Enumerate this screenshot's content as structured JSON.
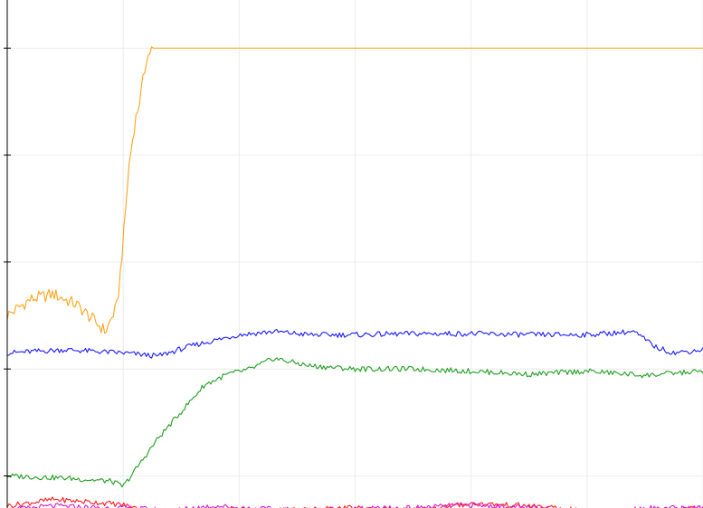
{
  "chart_data": {
    "type": "line",
    "title": "",
    "xlabel": "",
    "ylabel": "",
    "xlim": [
      0,
      600
    ],
    "ylim": [
      -0.3,
      4.45
    ],
    "y_ticks": [
      0,
      1,
      2,
      3,
      4
    ],
    "x_grid": [
      100,
      200,
      300,
      400,
      500,
      600
    ],
    "grid": true,
    "legend": "none",
    "series": [
      {
        "color": "#ffa31a",
        "x": [
          0,
          20,
          40,
          60,
          75,
          85,
          95,
          100,
          105,
          110,
          115,
          120,
          125,
          600
        ],
        "y": [
          1.5,
          1.65,
          1.7,
          1.6,
          1.45,
          1.35,
          1.6,
          2.2,
          2.9,
          3.3,
          3.55,
          3.9,
          4.0,
          4.0
        ]
      },
      {
        "color": "#1a1aff",
        "x": [
          0,
          50,
          100,
          130,
          160,
          200,
          230,
          260,
          300,
          350,
          400,
          450,
          500,
          540,
          560,
          575,
          600
        ],
        "y": [
          1.15,
          1.18,
          1.15,
          1.12,
          1.22,
          1.32,
          1.35,
          1.32,
          1.32,
          1.33,
          1.33,
          1.32,
          1.32,
          1.35,
          1.2,
          1.15,
          1.18
        ]
      },
      {
        "color": "#1f9e1f",
        "x": [
          0,
          50,
          90,
          100,
          110,
          130,
          150,
          170,
          190,
          210,
          230,
          260,
          300,
          350,
          400,
          450,
          500,
          550,
          600
        ],
        "y": [
          0.0,
          -0.02,
          -0.05,
          -0.1,
          0.05,
          0.35,
          0.6,
          0.85,
          0.95,
          1.0,
          1.1,
          1.03,
          1.0,
          1.0,
          0.98,
          0.95,
          0.98,
          0.94,
          0.98
        ]
      },
      {
        "color": "#ff1a1a",
        "x": [
          0,
          40,
          80,
          100,
          120,
          140,
          150,
          170,
          190,
          220,
          250,
          300,
          350,
          400,
          450,
          500,
          550,
          600
        ],
        "y": [
          -0.28,
          -0.22,
          -0.25,
          -0.27,
          -0.33,
          -0.4,
          -0.42,
          -0.38,
          -0.3,
          -0.33,
          -0.32,
          -0.3,
          -0.32,
          -0.26,
          -0.28,
          -0.33,
          -0.33,
          -0.3
        ]
      },
      {
        "color": "#d11ad1",
        "x": [
          0,
          40,
          80,
          100,
          120,
          140,
          160,
          180,
          200,
          250,
          300,
          350,
          400,
          450,
          500,
          550,
          600
        ],
        "y": [
          -0.32,
          -0.28,
          -0.3,
          -0.3,
          -0.31,
          -0.33,
          -0.3,
          -0.28,
          -0.3,
          -0.32,
          -0.31,
          -0.3,
          -0.27,
          -0.3,
          -0.35,
          -0.3,
          -0.3
        ]
      }
    ]
  }
}
